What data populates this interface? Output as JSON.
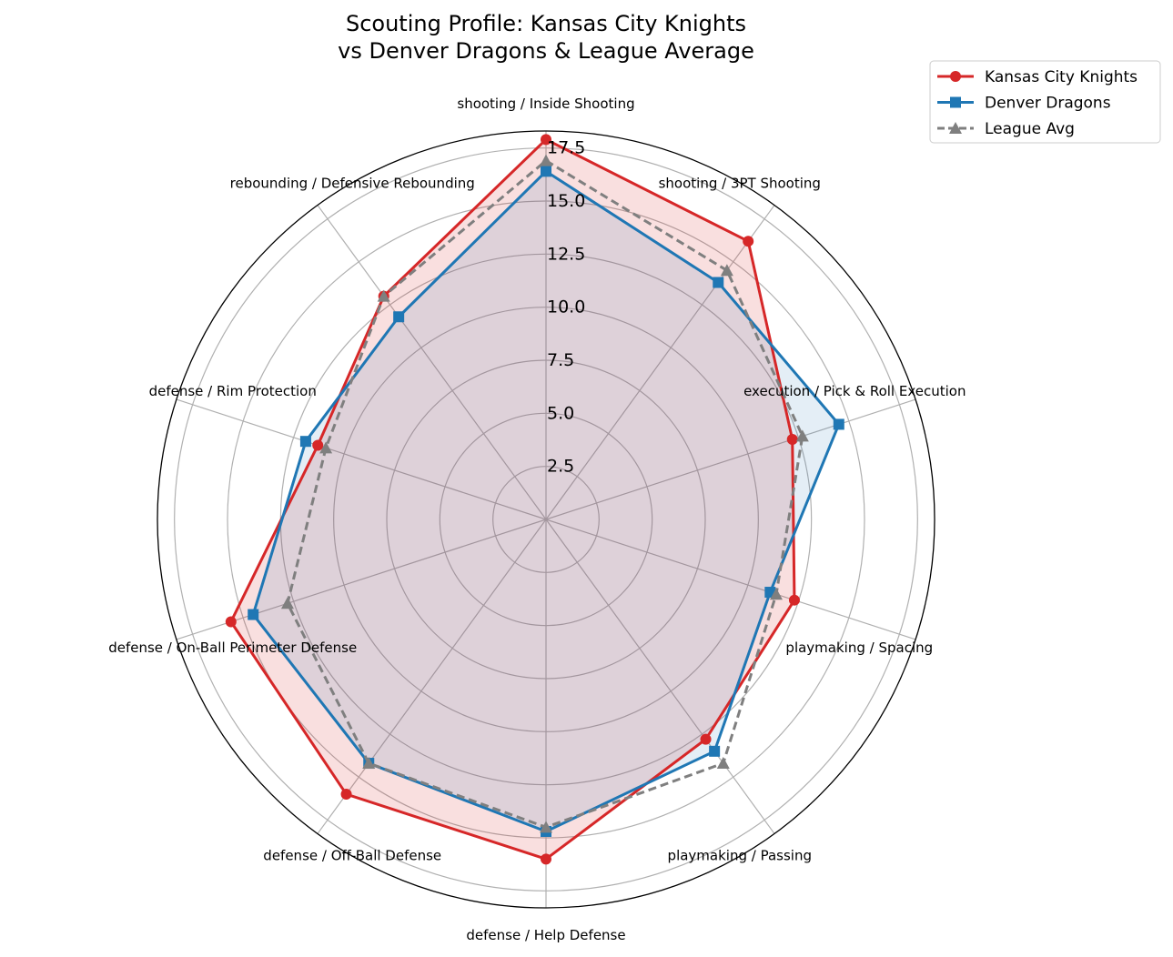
{
  "chart_data": {
    "type": "radar",
    "title": [
      "Scouting Profile: Kansas City Knights",
      "vs Denver Dragons & League Average"
    ],
    "categories": [
      "shooting / Inside Shooting",
      "shooting / 3PT Shooting",
      "execution / Pick & Roll Execution",
      "playmaking / Spacing",
      "playmaking / Passing",
      "defense / Help Defense",
      "defense / Off-Ball Defense",
      "defense / On-Ball Perimeter Defense",
      "defense / Rim Protection",
      "rebounding / Defensive Rebounding"
    ],
    "radial_ticks": [
      "2.5",
      "5.0",
      "7.5",
      "10.0",
      "12.5",
      "15.0",
      "17.5"
    ],
    "radial_tick_values": [
      2.5,
      5.0,
      7.5,
      10.0,
      12.5,
      15.0,
      17.5
    ],
    "rlim": [
      0,
      18.3
    ],
    "grid": true,
    "legend_position": "top-right (outside)",
    "series": [
      {
        "name": "Kansas City Knights",
        "color": "#d62728",
        "marker": "circle",
        "linestyle": "solid",
        "fill": true,
        "values": [
          17.9,
          16.2,
          12.2,
          12.3,
          12.8,
          16.0,
          16.0,
          15.6,
          11.3,
          13.0
        ]
      },
      {
        "name": "Denver Dragons",
        "color": "#1f77b4",
        "marker": "square",
        "linestyle": "solid",
        "fill": true,
        "values": [
          16.4,
          13.8,
          14.5,
          11.1,
          13.5,
          14.7,
          14.2,
          14.5,
          11.9,
          11.8
        ]
      },
      {
        "name": "League Avg",
        "color": "#7f7f7f",
        "marker": "triangle",
        "linestyle": "dashed",
        "fill": false,
        "values": [
          16.9,
          14.5,
          12.7,
          11.4,
          14.2,
          14.5,
          14.2,
          12.8,
          10.9,
          13.0
        ]
      }
    ]
  }
}
